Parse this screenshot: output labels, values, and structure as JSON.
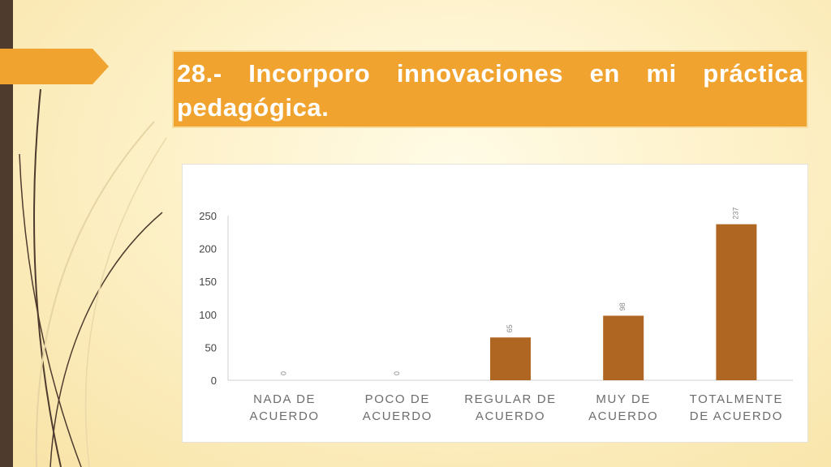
{
  "slide": {
    "title": "28.- Incorporo innovaciones en mi práctica pedagógica.",
    "colors": {
      "accent": "#f0a32f",
      "bar": "#b06623",
      "dark_bar": "#4e3b2e"
    }
  },
  "chart_data": {
    "type": "bar",
    "categories": [
      [
        "NADA DE",
        "ACUERDO"
      ],
      [
        "POCO DE",
        "ACUERDO"
      ],
      [
        "REGULAR DE",
        "ACUERDO"
      ],
      [
        "MUY DE",
        "ACUERDO"
      ],
      [
        "TOTALMENTE",
        "DE ACUERDO"
      ]
    ],
    "values": [
      0,
      0,
      65,
      98,
      237
    ],
    "data_labels": [
      "0",
      "0",
      "65",
      "98",
      "237"
    ],
    "yticks": [
      0,
      50,
      100,
      150,
      200,
      250
    ],
    "ylim": [
      0,
      250
    ],
    "grid": false,
    "legend": "none",
    "title": "",
    "xlabel": "",
    "ylabel": ""
  }
}
